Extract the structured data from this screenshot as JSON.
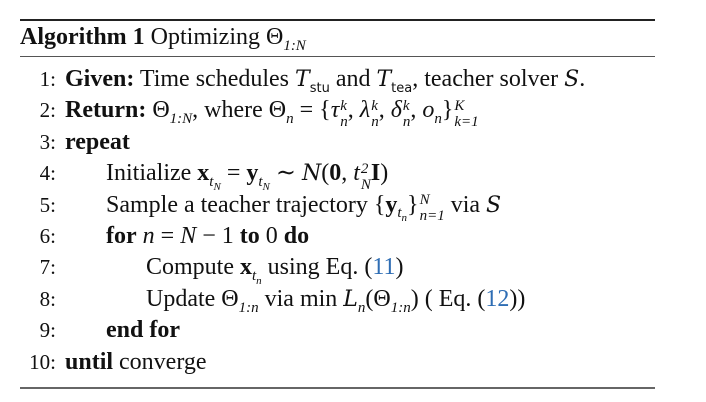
{
  "title": [
    {
      "k": "b",
      "v": "Algorithm 1"
    },
    {
      "k": "t",
      "v": " Optimizing Θ"
    },
    {
      "k": "sub",
      "v": "1:N"
    }
  ],
  "lines": [
    {
      "num": "1:",
      "indent": 0,
      "segments": [
        {
          "k": "b",
          "v": "Given:"
        },
        {
          "k": "t",
          "v": " Time schedules "
        },
        {
          "k": "cal",
          "v": "T"
        },
        {
          "k": "subsans",
          "v": "stu"
        },
        {
          "k": "t",
          "v": " and "
        },
        {
          "k": "cal",
          "v": "T"
        },
        {
          "k": "subsans",
          "v": "tea"
        },
        {
          "k": "t",
          "v": ", teacher solver "
        },
        {
          "k": "cal",
          "v": "S"
        },
        {
          "k": "t",
          "v": "."
        }
      ]
    },
    {
      "num": "2:",
      "indent": 0,
      "segments": [
        {
          "k": "b",
          "v": "Return:"
        },
        {
          "k": "t",
          "v": " Θ"
        },
        {
          "k": "sub",
          "v": "1:N"
        },
        {
          "k": "t",
          "v": ", where Θ"
        },
        {
          "k": "sub",
          "v": "n"
        },
        {
          "k": "t",
          "v": " = {"
        },
        {
          "k": "i",
          "v": "τ"
        },
        {
          "k": "subsup",
          "sub": "n",
          "sup": "k"
        },
        {
          "k": "t",
          "v": ", "
        },
        {
          "k": "i",
          "v": "λ"
        },
        {
          "k": "subsup",
          "sub": "n",
          "sup": "k"
        },
        {
          "k": "t",
          "v": ", "
        },
        {
          "k": "i",
          "v": "δ"
        },
        {
          "k": "subsup",
          "sub": "n",
          "sup": "k"
        },
        {
          "k": "t",
          "v": ", "
        },
        {
          "k": "i",
          "v": "o"
        },
        {
          "k": "sub",
          "v": "n"
        },
        {
          "k": "t",
          "v": "}"
        },
        {
          "k": "subsup",
          "sub": "k=1",
          "sup": "K"
        }
      ]
    },
    {
      "num": "3:",
      "indent": 0,
      "segments": [
        {
          "k": "b",
          "v": "repeat"
        }
      ]
    },
    {
      "num": "4:",
      "indent": 1,
      "segments": [
        {
          "k": "t",
          "v": "Initialize "
        },
        {
          "k": "bf",
          "v": "x"
        },
        {
          "k": "subsub",
          "v": "t",
          "v2": "N"
        },
        {
          "k": "t",
          "v": " = "
        },
        {
          "k": "bf",
          "v": "y"
        },
        {
          "k": "subsub",
          "v": "t",
          "v2": "N"
        },
        {
          "k": "t",
          "v": " ∼ "
        },
        {
          "k": "cal",
          "v": "N"
        },
        {
          "k": "t",
          "v": "("
        },
        {
          "k": "bf",
          "v": "0"
        },
        {
          "k": "t",
          "v": ", "
        },
        {
          "k": "i",
          "v": "t"
        },
        {
          "k": "subsup",
          "sub": "N",
          "sup": "2"
        },
        {
          "k": "bf",
          "v": "I"
        },
        {
          "k": "t",
          "v": ")"
        }
      ]
    },
    {
      "num": "5:",
      "indent": 1,
      "segments": [
        {
          "k": "t",
          "v": "Sample a teacher trajectory {"
        },
        {
          "k": "bf",
          "v": "y"
        },
        {
          "k": "subsub",
          "v": "t",
          "v2": "n"
        },
        {
          "k": "t",
          "v": "}"
        },
        {
          "k": "subsup",
          "sub": "n=1",
          "sup": "N"
        },
        {
          "k": "t",
          "v": " via "
        },
        {
          "k": "cal",
          "v": "S"
        }
      ]
    },
    {
      "num": "6:",
      "indent": 1,
      "segments": [
        {
          "k": "b",
          "v": "for"
        },
        {
          "k": "t",
          "v": " "
        },
        {
          "k": "i",
          "v": "n"
        },
        {
          "k": "t",
          "v": " = "
        },
        {
          "k": "i",
          "v": "N"
        },
        {
          "k": "t",
          "v": " − 1 "
        },
        {
          "k": "b",
          "v": "to"
        },
        {
          "k": "t",
          "v": " 0 "
        },
        {
          "k": "b",
          "v": "do"
        }
      ]
    },
    {
      "num": "7:",
      "indent": 2,
      "segments": [
        {
          "k": "t",
          "v": "Compute "
        },
        {
          "k": "bf",
          "v": "x"
        },
        {
          "k": "subsub",
          "v": "t",
          "v2": "n"
        },
        {
          "k": "t",
          "v": " using Eq. ("
        },
        {
          "k": "link",
          "v": "11"
        },
        {
          "k": "t",
          "v": ")"
        }
      ]
    },
    {
      "num": "8:",
      "indent": 2,
      "segments": [
        {
          "k": "t",
          "v": "Update Θ"
        },
        {
          "k": "sub",
          "v": "1:n"
        },
        {
          "k": "t",
          "v": " via min "
        },
        {
          "k": "cal",
          "v": "L"
        },
        {
          "k": "sub",
          "v": "n"
        },
        {
          "k": "t",
          "v": "(Θ"
        },
        {
          "k": "sub",
          "v": "1:n"
        },
        {
          "k": "t",
          "v": ") ( Eq. ("
        },
        {
          "k": "link",
          "v": "12"
        },
        {
          "k": "t",
          "v": "))"
        }
      ]
    },
    {
      "num": "9:",
      "indent": 1,
      "segments": [
        {
          "k": "b",
          "v": "end for"
        }
      ]
    },
    {
      "num": "10:",
      "indent": 0,
      "segments": [
        {
          "k": "b",
          "v": "until"
        },
        {
          "k": "t",
          "v": " converge"
        }
      ]
    }
  ],
  "colors": {
    "link": "#2e6db4",
    "text": "#111111"
  }
}
